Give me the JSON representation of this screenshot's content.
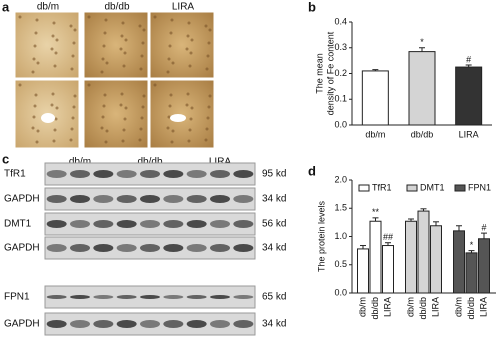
{
  "histology": {
    "label": "a",
    "columns": [
      "db/m",
      "db/db",
      "LIRA"
    ]
  },
  "blot": {
    "label": "c",
    "groups": [
      "db/m",
      "db/db",
      "LIRA"
    ],
    "rows": [
      {
        "name": "TfR1",
        "size": "95 kd"
      },
      {
        "name": "GAPDH",
        "size": "34 kd"
      },
      {
        "name": "DMT1",
        "size": "56 kd"
      },
      {
        "name": "GAPDH",
        "size": "34 kd"
      },
      {
        "name": "FPN1",
        "size": "65 kd"
      },
      {
        "name": "GAPDH",
        "size": "34 kd"
      }
    ]
  },
  "chart_data": [
    {
      "type": "bar",
      "label": "b",
      "ylabel": [
        "The mean",
        "density of Fe content"
      ],
      "categories": [
        "db/m",
        "db/db",
        "LIRA"
      ],
      "values": [
        0.21,
        0.285,
        0.225
      ],
      "errors": [
        0.005,
        0.015,
        0.008
      ],
      "colors": [
        "#ffffff",
        "#d4d4d4",
        "#333333"
      ],
      "annotations": [
        null,
        "*",
        "#"
      ],
      "ylim": [
        0,
        0.4
      ],
      "yticks": [
        {
          "value": 0,
          "label": "0.0"
        },
        0.1,
        0.2,
        0.3,
        0.4
      ]
    },
    {
      "type": "grouped-bar",
      "label": "d",
      "ylabel": "The protein levels",
      "groups": [
        {
          "name": "TfR1",
          "color": "#ffffff",
          "categories": [
            "db/m",
            "db/db",
            "LIRA"
          ],
          "values": [
            0.78,
            1.27,
            0.84
          ],
          "errors": [
            0.06,
            0.06,
            0.05
          ],
          "annotations": [
            null,
            "**",
            "##"
          ]
        },
        {
          "name": "DMT1",
          "color": "#d4d4d4",
          "categories": [
            "db/m",
            "db/db",
            "LIRA"
          ],
          "values": [
            1.27,
            1.45,
            1.19
          ],
          "errors": [
            0.04,
            0.04,
            0.07
          ],
          "annotations": [
            null,
            null,
            null
          ]
        },
        {
          "name": "FPN1",
          "color": "#555555",
          "categories": [
            "db/m",
            "db/db",
            "LIRA"
          ],
          "values": [
            1.1,
            0.71,
            0.96
          ],
          "errors": [
            0.09,
            0.04,
            0.1
          ],
          "annotations": [
            null,
            "*",
            "#"
          ]
        }
      ],
      "ylim": [
        0,
        2.0
      ],
      "yticks": [
        {
          "value": 0,
          "label": "0.0"
        },
        0.5,
        {
          "value": 1,
          "label": "1.0"
        },
        {
          "value": 1.5,
          "label": "1.5"
        },
        {
          "value": 2,
          "label": "2.0"
        }
      ]
    }
  ]
}
